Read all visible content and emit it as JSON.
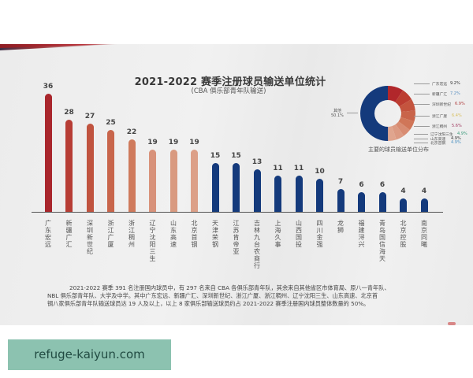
{
  "slide": {
    "title": "2021-2022 赛季注册球员输送单位统计",
    "subtitle": "(CBA 俱乐部青年队输送)"
  },
  "chart_data": [
    {
      "type": "bar",
      "title": "2021-2022 赛季注册球员输送单位统计",
      "subtitle": "(CBA 俱乐部青年队输送)",
      "xlabel": "",
      "ylabel": "",
      "grid": false,
      "categories": [
        "广东宏远",
        "新疆广汇",
        "深圳新世纪",
        "浙江广厦",
        "浙江稠州",
        "辽宁沈阳三生",
        "山东高速",
        "北京首钢",
        "天津荣钢",
        "江苏肯帝亚",
        "吉林九台农商行",
        "上海久事",
        "山西国投",
        "四川金强",
        "龙狮",
        "福建浔兴",
        "青岛国信海天",
        "北京控股",
        "南京同曦"
      ],
      "values": [
        36,
        28,
        27,
        25,
        22,
        19,
        19,
        19,
        15,
        15,
        13,
        11,
        11,
        10,
        7,
        6,
        6,
        4,
        4
      ],
      "colors": [
        "#a9262c",
        "#b73d35",
        "#c0533f",
        "#c8654b",
        "#cf7a5c",
        "#d8927a",
        "#d99a80",
        "#dca088",
        "#143a7c",
        "#143a7c",
        "#143a7c",
        "#143a7c",
        "#143a7c",
        "#143a7c",
        "#143a7c",
        "#143a7c",
        "#143a7c",
        "#143a7c",
        "#143a7c"
      ],
      "ylim": [
        0,
        40
      ]
    },
    {
      "type": "pie",
      "title": "主要的球员输送单位分布",
      "donut": true,
      "slices": [
        {
          "label": "广东宏远",
          "value": 9.2,
          "pct": "9.2%",
          "color": "#b1272b",
          "pct_color": "#333333"
        },
        {
          "label": "新疆广汇",
          "value": 7.2,
          "pct": "7.2%",
          "color": "#bc3d31",
          "pct_color": "#5a8fc0"
        },
        {
          "label": "深圳新世纪",
          "value": 6.9,
          "pct": "6.9%",
          "color": "#c4543e",
          "pct_color": "#b04040"
        },
        {
          "label": "浙江广厦",
          "value": 6.4,
          "pct": "6.4%",
          "color": "#c9644a",
          "pct_color": "#d9c060"
        },
        {
          "label": "浙江稠州",
          "value": 5.6,
          "pct": "5.6%",
          "color": "#d07658",
          "pct_color": "#a03a60"
        },
        {
          "label": "辽宁沈阳三生",
          "value": 4.9,
          "pct": "4.9%",
          "color": "#d88c72",
          "pct_color": "#3a9a7a"
        },
        {
          "label": "山东高速",
          "value": 4.9,
          "pct": "4.9%",
          "color": "#dc9a82",
          "pct_color": "#333333"
        },
        {
          "label": "北京首钢",
          "value": 4.9,
          "pct": "4.9%",
          "color": "#e0a58e",
          "pct_color": "#4a90c0"
        },
        {
          "label": "其他",
          "value": 50.1,
          "pct": "50.1%",
          "color": "#143a7c",
          "pct_color": "#555555"
        }
      ]
    }
  ],
  "donut_caption": "主要的球员输送单位分布",
  "donut_other": {
    "label": "其他",
    "pct": "50.1%"
  },
  "note": {
    "line1": "2021-2022 赛季 391 名注册国内球员中，有 297 名来自 CBA 各俱乐部青年队，其余来自其他省区市体育局、原八一青年队、",
    "line2": "NBL 俱乐部青年队、大学及中学。其中广东宏远、新疆广汇、深圳新世纪、浙江广厦、浙江稠州、辽宁沈阳三生、山东高速、北京首",
    "line3": "钢八家俱乐部青年队输送球员达 19 人及以上，以上 8 家俱乐部输送球员约占 2021-2022 赛季注册国内球员整体数量的 50%。"
  },
  "watermark": {
    "text": "refuge-kaiyun.com"
  }
}
